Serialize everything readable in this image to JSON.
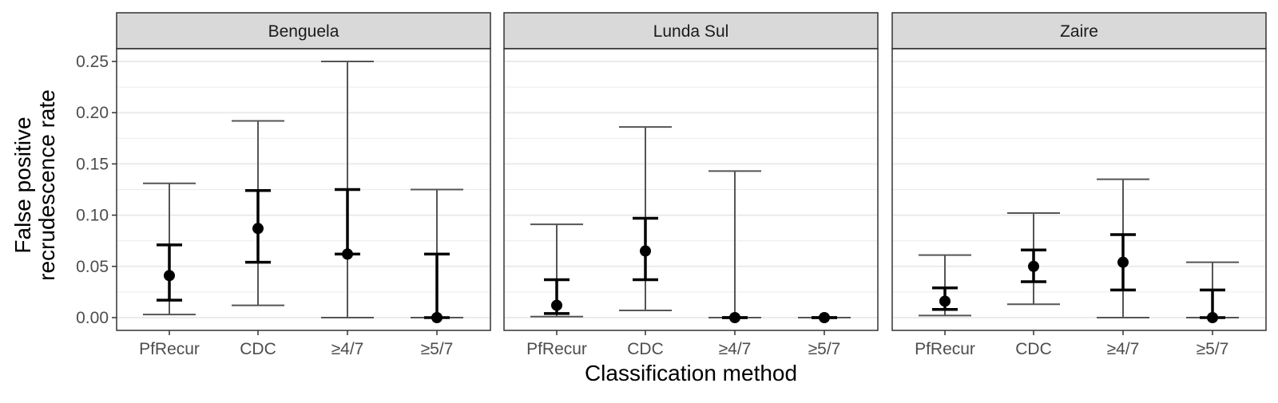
{
  "chart_data": {
    "type": "errorbar",
    "xlabel": "Classification method",
    "ylabel_lines": [
      "False positive",
      "recrudescence rate"
    ],
    "ylim": [
      0,
      0.25
    ],
    "yticks": [
      0.0,
      0.05,
      0.1,
      0.15,
      0.2,
      0.25
    ],
    "ytick_labels": [
      "0.00",
      "0.05",
      "0.10",
      "0.15",
      "0.20",
      "0.25"
    ],
    "categories": [
      "PfRecur",
      "CDC",
      "≥4/7",
      "≥5/7"
    ],
    "grid": true,
    "colors": {
      "point": "#000000",
      "inner_bar": "#000000",
      "outer_bar": "#555555",
      "strip": "#d9d9d9",
      "grid": "#ebebeb",
      "border": "#333333"
    },
    "panels": [
      {
        "name": "Benguela",
        "points": [
          {
            "category": "PfRecur",
            "estimate": 0.041,
            "inner": [
              0.017,
              0.071
            ],
            "outer": [
              0.003,
              0.131
            ]
          },
          {
            "category": "CDC",
            "estimate": 0.087,
            "inner": [
              0.054,
              0.124
            ],
            "outer": [
              0.012,
              0.192
            ]
          },
          {
            "category": "≥4/7",
            "estimate": 0.062,
            "inner": [
              0.062,
              0.125
            ],
            "outer": [
              0.0,
              0.25
            ]
          },
          {
            "category": "≥5/7",
            "estimate": 0.0,
            "inner": [
              0.0,
              0.062
            ],
            "outer": [
              0.0,
              0.125
            ]
          }
        ]
      },
      {
        "name": "Lunda Sul",
        "points": [
          {
            "category": "PfRecur",
            "estimate": 0.012,
            "inner": [
              0.004,
              0.037
            ],
            "outer": [
              0.001,
              0.091
            ]
          },
          {
            "category": "CDC",
            "estimate": 0.065,
            "inner": [
              0.037,
              0.097
            ],
            "outer": [
              0.007,
              0.186
            ]
          },
          {
            "category": "≥4/7",
            "estimate": 0.0,
            "inner": [
              0.0,
              0.0
            ],
            "outer": [
              0.0,
              0.143
            ]
          },
          {
            "category": "≥5/7",
            "estimate": 0.0,
            "inner": [
              0.0,
              0.0
            ],
            "outer": [
              0.0,
              0.0
            ]
          }
        ]
      },
      {
        "name": "Zaire",
        "points": [
          {
            "category": "PfRecur",
            "estimate": 0.016,
            "inner": [
              0.008,
              0.029
            ],
            "outer": [
              0.002,
              0.061
            ]
          },
          {
            "category": "CDC",
            "estimate": 0.05,
            "inner": [
              0.035,
              0.066
            ],
            "outer": [
              0.013,
              0.102
            ]
          },
          {
            "category": "≥4/7",
            "estimate": 0.054,
            "inner": [
              0.027,
              0.081
            ],
            "outer": [
              0.0,
              0.135
            ]
          },
          {
            "category": "≥5/7",
            "estimate": 0.0,
            "inner": [
              0.0,
              0.027
            ],
            "outer": [
              0.0,
              0.054
            ]
          }
        ]
      }
    ]
  }
}
